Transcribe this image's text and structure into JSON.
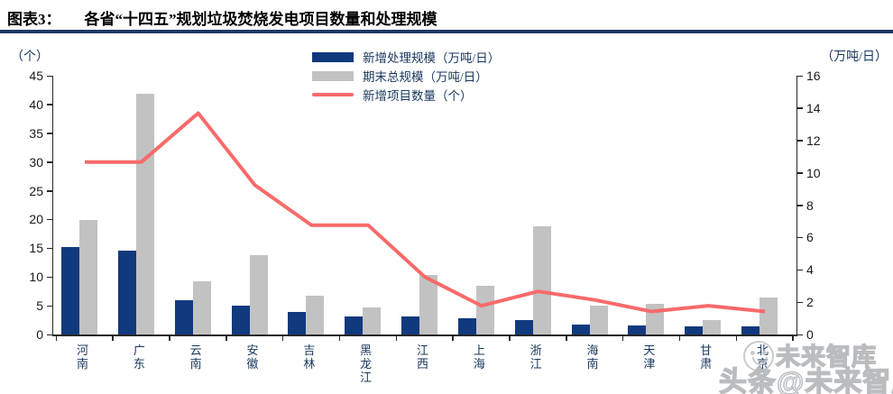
{
  "figure": {
    "label": "图表3：",
    "title": "各省“十四五”规划垃圾焚烧发电项目数量和处理规模"
  },
  "chart_data": {
    "type": "bar+line",
    "title": "各省“十四五”规划垃圾焚烧发电项目数量和处理规模",
    "categories": [
      "河南",
      "广东",
      "云南",
      "安徽",
      "吉林",
      "黑龙江",
      "江西",
      "上海",
      "浙江",
      "海南",
      "天津",
      "甘肃",
      "北京"
    ],
    "series": [
      {
        "name": "新增处理规模（万吨/日）",
        "type": "bar",
        "axis": "right",
        "color": "#11397e",
        "values": [
          5.4,
          5.2,
          2.1,
          1.8,
          1.4,
          1.1,
          1.1,
          1.0,
          0.9,
          0.6,
          0.55,
          0.5,
          0.5
        ]
      },
      {
        "name": "期末总规模（万吨/日）",
        "type": "bar",
        "axis": "right",
        "color": "#c2c2c2",
        "values": [
          7.1,
          14.9,
          3.3,
          4.9,
          2.4,
          1.7,
          3.7,
          3.0,
          6.7,
          1.8,
          1.9,
          0.9,
          2.3
        ]
      },
      {
        "name": "新增项目数量（个）",
        "type": "line",
        "axis": "left",
        "color": "#f96a6a",
        "values": [
          30,
          30,
          38.5,
          26,
          19,
          19,
          10,
          5,
          7.5,
          6,
          4,
          5,
          4
        ]
      }
    ],
    "left_axis": {
      "unit": "（个）",
      "min": 0,
      "max": 45,
      "step": 5,
      "ticks": [
        0,
        5,
        10,
        15,
        20,
        25,
        30,
        35,
        40,
        45
      ]
    },
    "right_axis": {
      "unit": "（万吨/日）",
      "min": 0,
      "max": 16,
      "step": 2,
      "ticks": [
        0,
        2,
        4,
        6,
        8,
        10,
        12,
        14,
        16
      ]
    },
    "legend_position": "top-center",
    "grid": false
  },
  "watermark": {
    "logo": "toutiao-smiley-icon",
    "line1": "未来智库",
    "line2": "头条@未来智库"
  }
}
